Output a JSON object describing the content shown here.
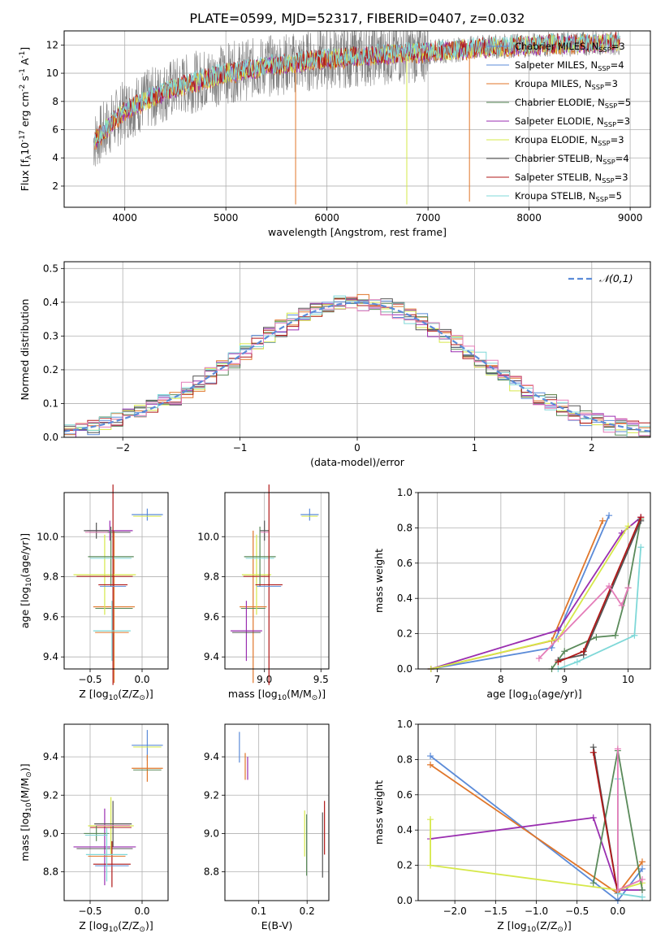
{
  "figure_title": "PLATE=0599, MJD=52317, FIBERID=0407, z=0.032",
  "colors": {
    "chabrier_miles": "#5b8bd8",
    "salpeter_miles": "#5b8bd8",
    "kroupa_miles": "#e0762a",
    "chabrier_elodie": "#5a8a5a",
    "salpeter_elodie": "#9a2eb0",
    "kroupa_elodie": "#d6e84a",
    "chabrier_stelib": "#555555",
    "salpeter_stelib": "#b01818",
    "kroupa_stelib": "#7fd8d8",
    "data": "#808080",
    "pink": "#e47cb8",
    "normal": "#5b8bd8"
  },
  "chart_data": [
    {
      "type": "line",
      "title": "PLATE=0599, MJD=52317, FIBERID=0407, z=0.032",
      "xlabel": "wavelength [Angstrom, rest frame]",
      "ylabel": "Flux [f$_\\lambda$10$^{-17}$ erg cm$^{-2}$ s$^{-1}$ A$^{-1}$]",
      "xlim": [
        3400,
        9200
      ],
      "ylim": [
        0.5,
        13
      ],
      "x_ticks": [
        "4000",
        "5000",
        "6000",
        "7000",
        "8000",
        "9000"
      ],
      "y_ticks": [
        "2",
        "4",
        "6",
        "8",
        "10",
        "12"
      ],
      "legend": "top-right",
      "series": [
        {
          "name": "Chabrier MILES, N$_{SSP}$=3"
        },
        {
          "name": "Salpeter MILES, N$_{SSP}$=4"
        },
        {
          "name": "Kroupa MILES, N$_{SSP}$=3"
        },
        {
          "name": "Chabrier ELODIE, N$_{SSP}$=5"
        },
        {
          "name": "Salpeter ELODIE, N$_{SSP}$=3"
        },
        {
          "name": "Kroupa ELODIE, N$_{SSP}$=3"
        },
        {
          "name": "Chabrier STELIB, N$_{SSP}$=4"
        },
        {
          "name": "Salpeter STELIB, N$_{SSP}$=3"
        },
        {
          "name": "Kroupa STELIB, N$_{SSP}$=5"
        }
      ],
      "continuum_data": {
        "x": [
          3700,
          4000,
          4500,
          5000,
          5500,
          6000,
          6500,
          7000,
          7500,
          8000,
          8500,
          8900
        ],
        "y": [
          5.2,
          7.4,
          9.0,
          10.0,
          10.6,
          11.0,
          11.3,
          11.5,
          11.8,
          12.0,
          12.1,
          12.2
        ]
      },
      "spikes": [
        {
          "x": 5690,
          "y": 0.7
        },
        {
          "x": 6790,
          "y": 0.7
        },
        {
          "x": 7410,
          "y": 0.9
        }
      ]
    },
    {
      "type": "line",
      "xlabel": "(data-model)/error",
      "ylabel": "Normed distribution",
      "xlim": [
        -2.5,
        2.5
      ],
      "ylim": [
        0,
        0.52
      ],
      "x_ticks": [
        "−2",
        "−1",
        "0",
        "1",
        "2"
      ],
      "y_ticks": [
        "0.0",
        "0.1",
        "0.2",
        "0.3",
        "0.4",
        "0.5"
      ],
      "legend_label": "$\\mathcal{N}(0,1)$",
      "legend": "top-right",
      "histogram_bin_width": 0.1,
      "histogram_series_count": 9
    },
    {
      "type": "scatter",
      "xlabel": "Z [log$_{10}$(Z/Z$_\\odot$)]",
      "ylabel": "age  [log$_{10}$(age/yr)]",
      "xlim": [
        -0.75,
        0.25
      ],
      "ylim": [
        9.34,
        10.22
      ],
      "x_ticks": [
        "−0.5",
        "0.0"
      ],
      "y_ticks": [
        "9.4",
        "9.6",
        "9.8",
        "10.0"
      ],
      "points": [
        {
          "x": 0.05,
          "y": 10.11,
          "xerr": 0.15,
          "yerr": 0.03
        },
        {
          "x": -0.27,
          "y": 9.65,
          "xerr": 0.2,
          "yerr": 0.38
        },
        {
          "x": -0.31,
          "y": 10.03,
          "xerr": 0.22,
          "yerr": 0.05
        },
        {
          "x": -0.36,
          "y": 9.81,
          "xerr": 0.3,
          "yerr": 0.2
        },
        {
          "x": -0.3,
          "y": 9.9,
          "xerr": 0.22,
          "yerr": 0.15
        },
        {
          "x": -0.44,
          "y": 10.03,
          "xerr": 0.12,
          "yerr": 0.04
        },
        {
          "x": -0.28,
          "y": 9.76,
          "xerr": 0.14,
          "yerr": 0.5
        },
        {
          "x": -0.29,
          "y": 9.53,
          "xerr": 0.18,
          "yerr": 0.15
        }
      ]
    },
    {
      "type": "scatter",
      "xlabel": "mass [log$_{10}$(M/M$_\\odot$)]",
      "xlim": [
        8.65,
        9.57
      ],
      "ylim": [
        9.34,
        10.22
      ],
      "x_ticks": [
        "9.0",
        "9.5"
      ],
      "y_ticks": [
        "9.4",
        "9.6",
        "9.8",
        "10.0"
      ],
      "points": [
        {
          "x": 9.4,
          "y": 10.11,
          "xerr": 0.08,
          "yerr": 0.03
        },
        {
          "x": 8.9,
          "y": 9.65,
          "xerr": 0.12,
          "yerr": 0.38
        },
        {
          "x": 8.84,
          "y": 9.53,
          "xerr": 0.14,
          "yerr": 0.15
        },
        {
          "x": 8.93,
          "y": 9.81,
          "xerr": 0.13,
          "yerr": 0.2
        },
        {
          "x": 8.96,
          "y": 9.9,
          "xerr": 0.14,
          "yerr": 0.15
        },
        {
          "x": 9.0,
          "y": 10.03,
          "xerr": 0.04,
          "yerr": 0.05
        },
        {
          "x": 9.04,
          "y": 9.76,
          "xerr": 0.12,
          "yerr": 0.5
        }
      ]
    },
    {
      "type": "line",
      "xlabel": "age  [log$_{10}$(age/yr)]",
      "ylabel": "mass weight",
      "xlim": [
        6.7,
        10.35
      ],
      "ylim": [
        0,
        1
      ],
      "x_ticks": [
        "7",
        "8",
        "9",
        "10"
      ],
      "y_ticks": [
        "0.0",
        "0.2",
        "0.4",
        "0.6",
        "0.8",
        "1.0"
      ],
      "series": [
        {
          "points": [
            [
              6.9,
              0.0
            ],
            [
              8.8,
              0.12
            ],
            [
              9.7,
              0.87
            ]
          ]
        },
        {
          "points": [
            [
              6.9,
              0.0
            ],
            [
              8.8,
              0.16
            ],
            [
              9.6,
              0.84
            ]
          ]
        },
        {
          "points": [
            [
              6.9,
              0.0
            ],
            [
              8.9,
              0.22
            ],
            [
              9.9,
              0.77
            ],
            [
              10.2,
              0.86
            ]
          ]
        },
        {
          "points": [
            [
              6.9,
              0.0
            ],
            [
              8.9,
              0.17
            ],
            [
              10.0,
              0.81
            ]
          ]
        },
        {
          "points": [
            [
              8.8,
              0.0
            ],
            [
              9.0,
              0.1
            ],
            [
              9.5,
              0.18
            ],
            [
              9.8,
              0.19
            ],
            [
              10.0,
              0.46
            ],
            [
              10.2,
              0.85
            ]
          ]
        },
        {
          "points": [
            [
              8.9,
              0.05
            ],
            [
              9.3,
              0.08
            ],
            [
              10.2,
              0.84
            ]
          ]
        },
        {
          "points": [
            [
              8.9,
              0.04
            ],
            [
              9.3,
              0.1
            ],
            [
              10.2,
              0.86
            ]
          ]
        },
        {
          "points": [
            [
              8.9,
              0.0
            ],
            [
              9.2,
              0.04
            ],
            [
              10.1,
              0.19
            ],
            [
              10.2,
              0.69
            ]
          ]
        },
        {
          "points": [
            [
              8.6,
              0.06
            ],
            [
              9.7,
              0.47
            ],
            [
              9.9,
              0.36
            ],
            [
              10.0,
              0.46
            ]
          ]
        }
      ]
    },
    {
      "type": "scatter",
      "xlabel": "Z [log$_{10}$(Z/Z$_\\odot$)]",
      "ylabel": "mass [log$_{10}$(M/M$_\\odot$)]",
      "xlim": [
        -0.75,
        0.25
      ],
      "ylim": [
        8.65,
        9.57
      ],
      "x_ticks": [
        "−0.5",
        "0.0"
      ],
      "y_ticks": [
        "8.8",
        "9.0",
        "9.2",
        "9.4"
      ],
      "points": [
        {
          "x": 0.05,
          "y": 9.46,
          "xerr": 0.15,
          "yerr": 0.08
        },
        {
          "x": 0.05,
          "y": 9.34,
          "xerr": 0.15,
          "yerr": 0.07
        },
        {
          "x": -0.36,
          "y": 8.93,
          "xerr": 0.3,
          "yerr": 0.2
        },
        {
          "x": -0.3,
          "y": 9.04,
          "xerr": 0.22,
          "yerr": 0.15
        },
        {
          "x": -0.44,
          "y": 9.0,
          "xerr": 0.12,
          "yerr": 0.04
        },
        {
          "x": -0.28,
          "y": 9.05,
          "xerr": 0.18,
          "yerr": 0.12
        },
        {
          "x": -0.29,
          "y": 8.84,
          "xerr": 0.18,
          "yerr": 0.12
        },
        {
          "x": -0.34,
          "y": 8.89,
          "xerr": 0.2,
          "yerr": 0.14
        }
      ]
    },
    {
      "type": "scatter",
      "xlabel": "E(B-V)",
      "xlim": [
        0.03,
        0.245
      ],
      "ylim": [
        8.65,
        9.57
      ],
      "x_ticks": [
        "0.1",
        "0.2"
      ],
      "y_ticks": [
        "8.8",
        "9.0",
        "9.2",
        "9.4"
      ],
      "points": [
        {
          "x": 0.06,
          "y": 9.45,
          "yerr": 0.08
        },
        {
          "x": 0.072,
          "y": 9.35,
          "yerr": 0.07
        },
        {
          "x": 0.077,
          "y": 9.34,
          "yerr": 0.06
        },
        {
          "x": 0.195,
          "y": 9.0,
          "yerr": 0.12
        },
        {
          "x": 0.199,
          "y": 8.94,
          "yerr": 0.16
        },
        {
          "x": 0.232,
          "y": 8.94,
          "yerr": 0.17
        },
        {
          "x": 0.236,
          "y": 9.03,
          "yerr": 0.14
        }
      ]
    },
    {
      "type": "line",
      "xlabel": "Z [log$_{10}$(Z/Z$_\\odot$)]",
      "ylabel": "mass weight",
      "xlim": [
        -2.45,
        0.4
      ],
      "ylim": [
        0,
        1
      ],
      "x_ticks": [
        "−2.0",
        "−1.5",
        "−1.0",
        "−0.5",
        "0.0"
      ],
      "y_ticks": [
        "0.0",
        "0.2",
        "0.4",
        "0.6",
        "0.8",
        "1.0"
      ],
      "series": [
        {
          "points": [
            [
              -2.3,
              0.82
            ],
            [
              0.0,
              0.0
            ],
            [
              0.3,
              0.18
            ]
          ]
        },
        {
          "points": [
            [
              -2.3,
              0.77
            ],
            [
              0.0,
              0.04
            ],
            [
              0.3,
              0.22
            ]
          ]
        },
        {
          "points": [
            [
              -2.3,
              0.35
            ],
            [
              -0.3,
              0.47
            ],
            [
              0.0,
              0.06
            ],
            [
              0.3,
              0.06
            ]
          ]
        },
        {
          "points": [
            [
              -2.3,
              0.46
            ],
            [
              -2.3,
              0.2
            ],
            [
              0.0,
              0.06
            ],
            [
              0.3,
              0.1
            ]
          ]
        },
        {
          "points": [
            [
              -0.3,
              0.1
            ],
            [
              0.0,
              0.85
            ],
            [
              0.3,
              0.06
            ]
          ]
        },
        {
          "points": [
            [
              -0.3,
              0.87
            ],
            [
              0.0,
              0.04
            ]
          ]
        },
        {
          "points": [
            [
              -0.3,
              0.84
            ],
            [
              0.0,
              0.04
            ]
          ]
        },
        {
          "points": [
            [
              0.0,
              0.69
            ],
            [
              0.0,
              0.04
            ],
            [
              0.3,
              0.02
            ]
          ]
        },
        {
          "points": [
            [
              0.0,
              0.86
            ],
            [
              0.0,
              0.06
            ],
            [
              0.3,
              0.12
            ]
          ]
        }
      ]
    }
  ]
}
